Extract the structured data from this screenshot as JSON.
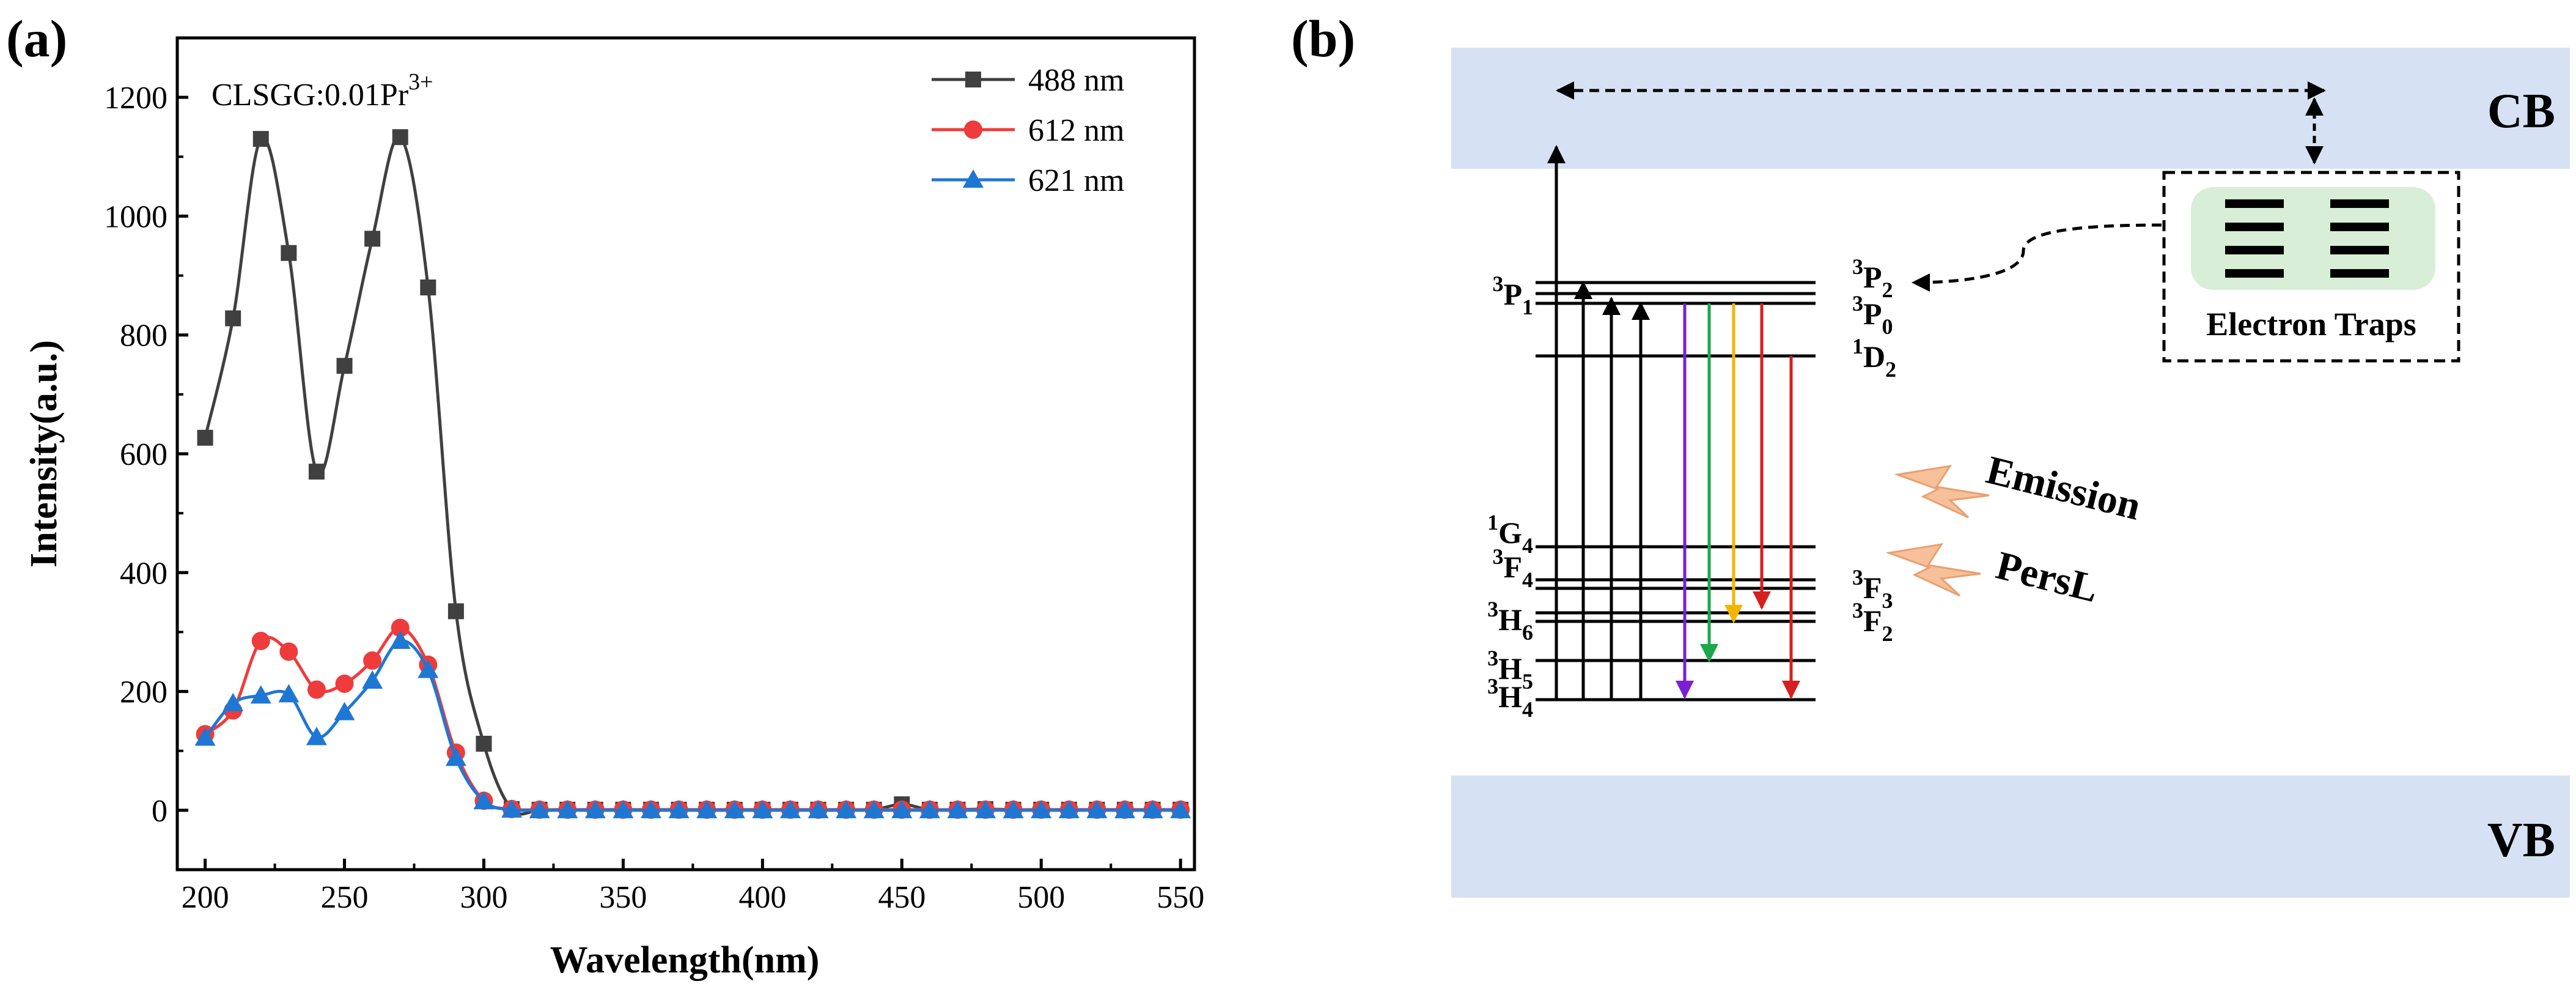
{
  "chart_data": [
    {
      "panel_label": "(a)",
      "type": "line",
      "title": "CLSGG:0.01Pr",
      "title_sup": "3+",
      "xlabel": "Wavelength(nm)",
      "ylabel": "Intensity(a.u.)",
      "xlim": [
        190,
        555
      ],
      "ylim": [
        -100,
        1300
      ],
      "xticks": [
        200,
        250,
        300,
        350,
        400,
        450,
        500,
        550
      ],
      "yticks": [
        0,
        200,
        400,
        600,
        800,
        1000,
        1200
      ],
      "grid": false,
      "legend_position": "top-right",
      "x": [
        200,
        210,
        220,
        230,
        240,
        250,
        260,
        270,
        280,
        290,
        300,
        310,
        320,
        330,
        340,
        350,
        360,
        370,
        380,
        390,
        400,
        410,
        420,
        430,
        440,
        450,
        460,
        470,
        480,
        490,
        500,
        510,
        520,
        530,
        540,
        550
      ],
      "series": [
        {
          "name": "488 nm",
          "color": "#404040",
          "marker": "square",
          "values": [
            627,
            828,
            1130,
            938,
            570,
            748,
            962,
            1133,
            880,
            335,
            112,
            2,
            1,
            1,
            1,
            1,
            1,
            1,
            1,
            1,
            1,
            1,
            1,
            1,
            1,
            10,
            1,
            1,
            2,
            1,
            1,
            1,
            1,
            1,
            1,
            1
          ]
        },
        {
          "name": "612 nm",
          "color": "#ef3b3b",
          "marker": "circle",
          "values": [
            128,
            168,
            285,
            267,
            203,
            213,
            252,
            307,
            245,
            97,
            16,
            2,
            1,
            1,
            1,
            1,
            1,
            1,
            1,
            1,
            1,
            1,
            1,
            1,
            1,
            1,
            1,
            1,
            1,
            1,
            1,
            1,
            1,
            1,
            1,
            1
          ]
        },
        {
          "name": "621 nm",
          "color": "#1f77d4",
          "marker": "triangle",
          "values": [
            122,
            180,
            193,
            195,
            123,
            165,
            218,
            285,
            236,
            88,
            15,
            1,
            0,
            0,
            0,
            0,
            0,
            0,
            0,
            0,
            0,
            0,
            0,
            0,
            0,
            0,
            0,
            0,
            0,
            0,
            0,
            0,
            0,
            0,
            0,
            0
          ]
        }
      ]
    }
  ],
  "diagram": {
    "panel_label": "(b)",
    "cb_label": "CB",
    "vb_label": "VB",
    "traps_label": "Electron Traps",
    "emission_label": "Emission",
    "persl_label": "PersL",
    "left_levels": [
      {
        "base": "3",
        "sym": "P",
        "sub": "1"
      },
      {
        "base": "1",
        "sym": "G",
        "sub": "4"
      },
      {
        "base": "3",
        "sym": "F",
        "sub": "4"
      },
      {
        "base": "3",
        "sym": "H",
        "sub": "6"
      },
      {
        "base": "3",
        "sym": "H",
        "sub": "5"
      },
      {
        "base": "3",
        "sym": "H",
        "sub": "4"
      }
    ],
    "right_levels": [
      {
        "base": "3",
        "sym": "P",
        "sub": "2"
      },
      {
        "base": "3",
        "sym": "P",
        "sub": "0"
      },
      {
        "base": "1",
        "sym": "D",
        "sub": "2"
      },
      {
        "base": "3",
        "sym": "F",
        "sub": "3"
      },
      {
        "base": "3",
        "sym": "F",
        "sub": "2"
      }
    ],
    "emission_colors": [
      "#7b1fd1",
      "#1aa84a",
      "#f5b400",
      "#d71f1f",
      "#d71f1f"
    ],
    "band_color": "#d6e2f3",
    "trap_box_color": "#d9eed6"
  }
}
